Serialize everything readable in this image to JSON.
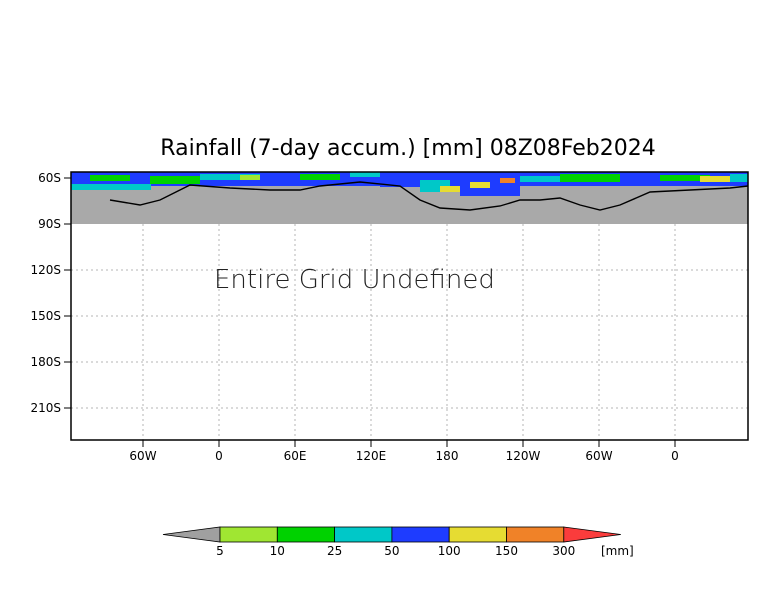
{
  "title": "Rainfall (7-day accum.) [mm] 08Z08Feb2024",
  "message": "Entire Grid Undefined",
  "y_axis_labels": [
    "60S",
    "90S",
    "120S",
    "150S",
    "180S",
    "210S"
  ],
  "x_axis_labels": [
    "60W",
    "0",
    "60E",
    "120E",
    "180",
    "120W",
    "60W",
    "0"
  ],
  "colorbar": {
    "unit": "[mm]",
    "thresholds": [
      "5",
      "10",
      "25",
      "50",
      "100",
      "150",
      "300"
    ],
    "colors": [
      "#a0a0a0",
      "#a0e632",
      "#00d200",
      "#00c8c8",
      "#1e3cff",
      "#e6dc32",
      "#f08228",
      "#fa3c3c"
    ]
  },
  "colors": {
    "undefined_fill": "#a9a9a9",
    "frame": "#000000",
    "grid": "#b4b4b4"
  }
}
